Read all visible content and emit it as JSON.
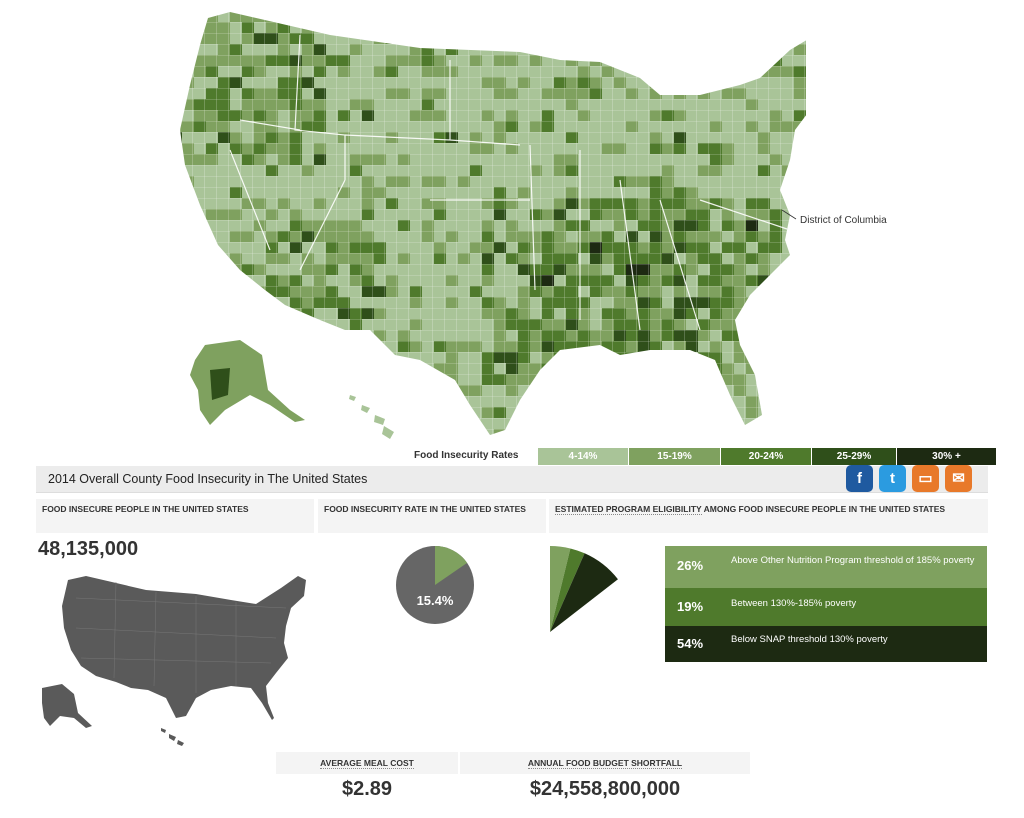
{
  "map": {
    "callout_label": "District of Columbia"
  },
  "legend": {
    "label": "Food Insecurity Rates",
    "bins": [
      {
        "label": "4-14%",
        "color": "#a9c498",
        "text_color": "#ffffff"
      },
      {
        "label": "15-19%",
        "color": "#7fa15f",
        "text_color": "#ffffff"
      },
      {
        "label": "20-24%",
        "color": "#4f7a2c",
        "text_color": "#ffffff"
      },
      {
        "label": "25-29%",
        "color": "#2f4f1a",
        "text_color": "#ffffff"
      },
      {
        "label": "30% +",
        "color": "#1d2a12",
        "text_color": "#ffffff"
      }
    ]
  },
  "panel": {
    "title": "2014 Overall County Food Insecurity in The United States",
    "share_icons": [
      "facebook-icon",
      "twitter-icon",
      "print-icon",
      "email-icon"
    ],
    "share_colors": [
      "#1f5aa0",
      "#2b9be0",
      "#e8792a",
      "#e8792a"
    ],
    "share_glyphs": [
      "f",
      "t",
      "▭",
      "✉"
    ]
  },
  "people": {
    "header": "FOOD INSECURE PEOPLE IN THE UNITED STATES",
    "value": "48,135,000"
  },
  "rate": {
    "header": "FOOD INSECURITY RATE IN THE UNITED STATES",
    "value": "15.4%",
    "fraction": 0.154,
    "pie_color": "#666666",
    "slice_color": "#7fa15f"
  },
  "eligibility": {
    "header_link": "ESTIMATED PROGRAM ELIGIBILITY",
    "header_rest": " AMONG FOOD INSECURE PEOPLE IN THE UNITED STATES",
    "rows": [
      {
        "pct": "26%",
        "value": 26,
        "text": "Above Other Nutrition Program threshold of 185% poverty",
        "color": "#7fa15f"
      },
      {
        "pct": "19%",
        "value": 19,
        "text": "Between 130%-185% poverty",
        "color": "#4f7a2c"
      },
      {
        "pct": "54%",
        "value": 54,
        "text": "Below SNAP threshold 130% poverty",
        "color": "#1d2a12"
      }
    ]
  },
  "meal_cost": {
    "header": "AVERAGE MEAL COST",
    "value": "$2.89"
  },
  "budget": {
    "header": "ANNUAL FOOD BUDGET SHORTFALL",
    "value": "$24,558,800,000"
  }
}
